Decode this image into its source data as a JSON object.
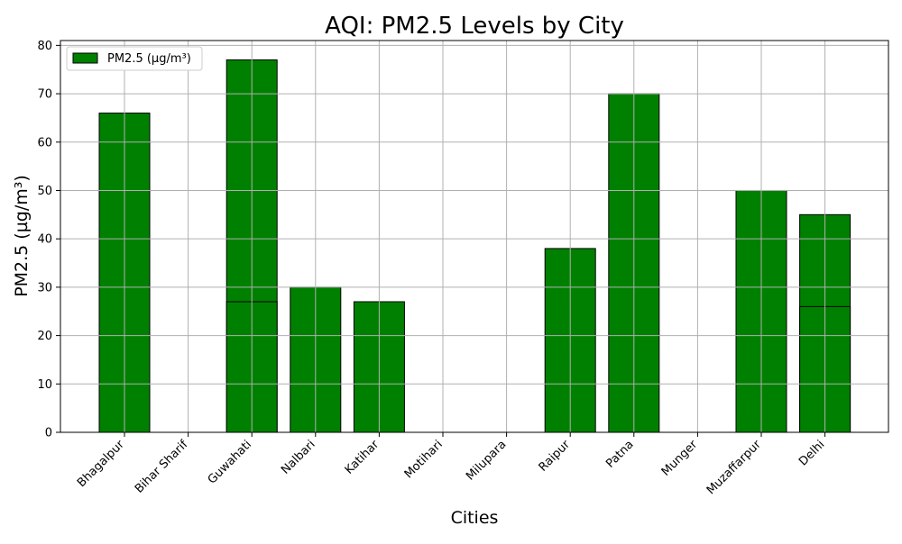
{
  "chart_data": {
    "type": "bar",
    "title": "AQI: PM2.5 Levels by City",
    "xlabel": "Cities",
    "ylabel": "PM2.5 (µg/m³)",
    "categories": [
      "Bhagalpur",
      "Bihar Sharif",
      "Guwahati",
      "Nalbari",
      "Katihar",
      "Motihari",
      "Milupara",
      "Raipur",
      "Patna",
      "Munger",
      "Muzaffarpur",
      "Delhi"
    ],
    "series": [
      {
        "name": "PM2.5 (µg/m³)",
        "values": [
          66,
          0,
          77,
          30,
          27,
          0,
          0,
          38,
          70,
          0,
          50,
          45
        ],
        "overlay_values": [
          null,
          null,
          27,
          null,
          null,
          null,
          null,
          null,
          null,
          null,
          null,
          26
        ]
      }
    ],
    "ylim": [
      0,
      81
    ],
    "yticks": [
      0,
      10,
      20,
      30,
      40,
      50,
      60,
      70,
      80
    ],
    "grid": true,
    "legend_position": "top-left",
    "colors": {
      "bar": "#008000",
      "edge": "#000000",
      "grid": "#b0b0b0"
    }
  }
}
